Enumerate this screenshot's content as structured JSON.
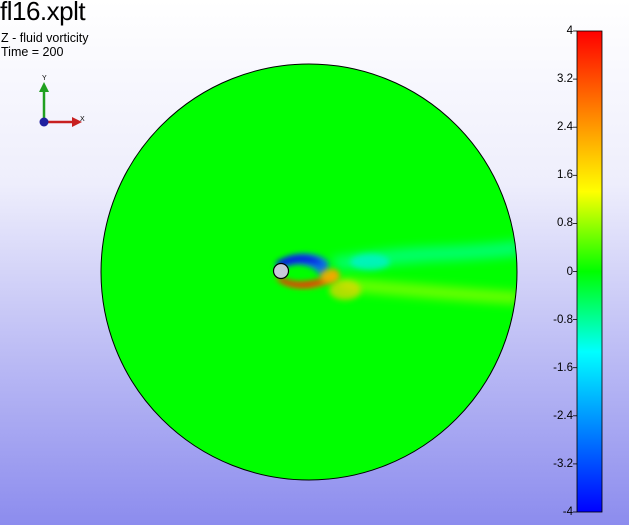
{
  "window": {
    "title": "fl16.xplt",
    "variable_label": "Z - fluid vorticity",
    "time_label": "Time = 200"
  },
  "triad": {
    "x_label": "X",
    "y_label": "Y",
    "colors": {
      "x": "#c82020",
      "y": "#20a020",
      "z": "#2020a0"
    }
  },
  "legend": {
    "min": -4,
    "max": 4,
    "ticks": [
      "4",
      "3.2",
      "2.4",
      "1.6",
      "0.8",
      "0",
      "-0.8",
      "-1.6",
      "-2.4",
      "-3.2",
      "-4"
    ],
    "tick_values": [
      4,
      3.2,
      2.4,
      1.6,
      0.8,
      0,
      -0.8,
      -1.6,
      -2.4,
      -3.2,
      -4
    ],
    "colormap": [
      "#0000ff",
      "#0080ff",
      "#00ffff",
      "#00ff00",
      "#ffff00",
      "#ff8000",
      "#ff0000"
    ]
  },
  "plot": {
    "background_value_color": "#00ff00",
    "cylinder_color": "#c8c8d8"
  }
}
